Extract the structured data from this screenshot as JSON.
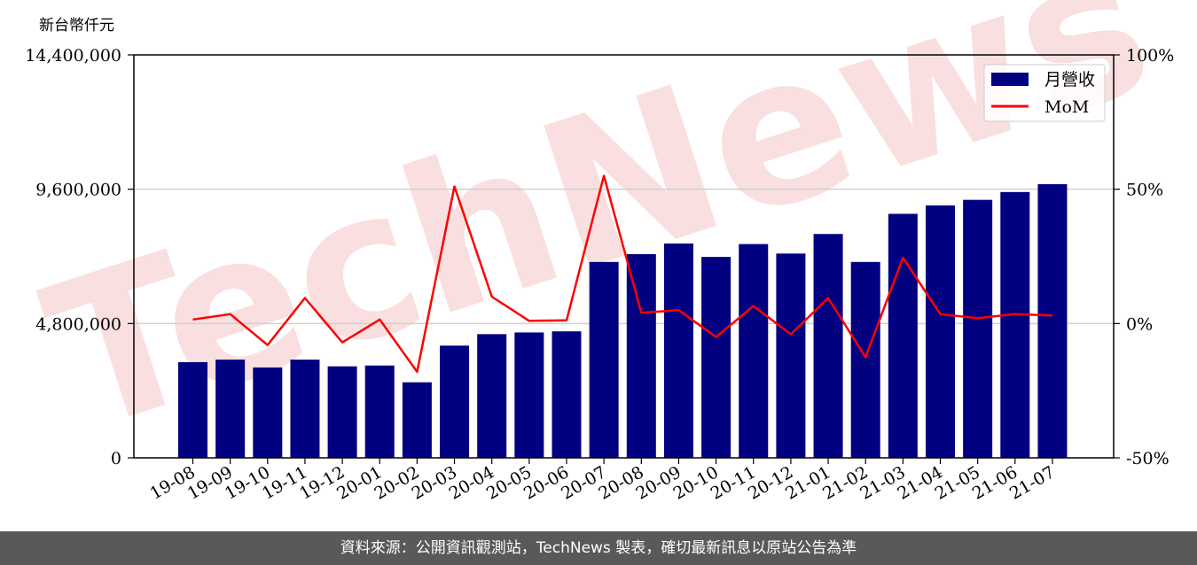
{
  "unit_label": "新台幣仟元",
  "watermark": "TechNews",
  "footer": "資料來源：公開資訊觀測站，TechNews 製表，確切最新訊息以原站公告為準",
  "colors": {
    "bar": "#000080",
    "line": "#ff0000",
    "grid": "#d0d0d0",
    "footer_bg": "#58595b",
    "watermark": "#f5c6c6"
  },
  "chart_data": {
    "type": "bar",
    "categories": [
      "19-08",
      "19-09",
      "19-10",
      "19-11",
      "19-12",
      "20-01",
      "20-02",
      "20-03",
      "20-04",
      "20-05",
      "20-06",
      "20-07",
      "20-08",
      "20-09",
      "20-10",
      "20-11",
      "20-12",
      "21-01",
      "21-02",
      "21-03",
      "21-04",
      "21-05",
      "21-06",
      "21-07"
    ],
    "series": [
      {
        "name": "月營收",
        "type": "bar",
        "axis": "left",
        "values": [
          3420000,
          3510000,
          3230000,
          3510000,
          3270000,
          3300000,
          2700000,
          4010000,
          4420000,
          4480000,
          4520000,
          7000000,
          7280000,
          7660000,
          7180000,
          7640000,
          7300000,
          8000000,
          7000000,
          8720000,
          9020000,
          9220000,
          9500000,
          9780000
        ]
      },
      {
        "name": "MoM",
        "type": "line",
        "axis": "right",
        "unit": "%",
        "values": [
          1.5,
          3.5,
          -8,
          9.5,
          -7,
          1.5,
          -18,
          51,
          10,
          1,
          1.2,
          55,
          4,
          5,
          -5,
          6.5,
          -4,
          9.5,
          -12.5,
          24.5,
          3.5,
          2,
          3.5,
          3
        ]
      }
    ],
    "y_left": {
      "ylim": [
        0,
        14400000
      ],
      "ticks": [
        "0",
        "4,800,000",
        "9,600,000",
        "14,400,000"
      ]
    },
    "y_right": {
      "ylim": [
        -50,
        100
      ],
      "ticks": [
        "-50%",
        "0%",
        "50%",
        "100%"
      ]
    },
    "grid": "horizontal",
    "legend": "top-right"
  }
}
